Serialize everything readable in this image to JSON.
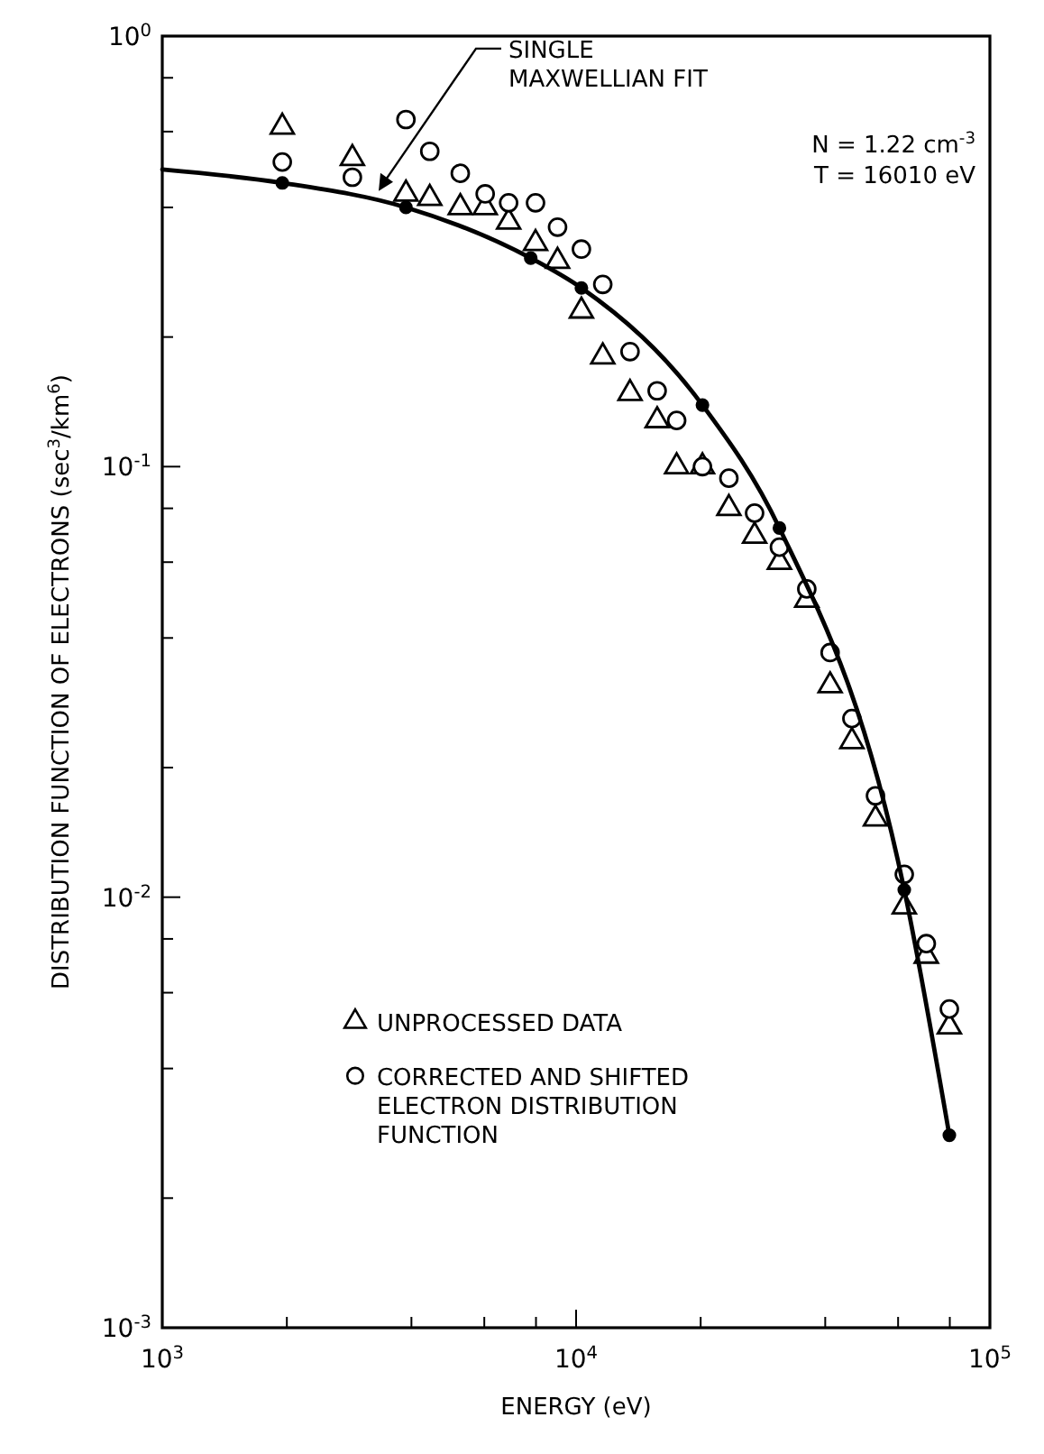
{
  "chart_data": {
    "type": "scatter",
    "xlabel": "ENERGY (eV)",
    "ylabel": "DISTRIBUTION FUNCTION OF ELECTRONS (sec$^{3}$/km$^{6}$)",
    "log": "xy",
    "xlim": [
      1000,
      100000
    ],
    "ylim": [
      0.001,
      1
    ],
    "xticks": [
      {
        "value": 1000,
        "label": "10$^{3}$"
      },
      {
        "value": 2000,
        "label": null
      },
      {
        "value": 4000,
        "label": null
      },
      {
        "value": 6000,
        "label": null
      },
      {
        "value": 8000,
        "label": null
      },
      {
        "value": 10000,
        "label": "10$^{4}$"
      },
      {
        "value": 20000,
        "label": null
      },
      {
        "value": 40000,
        "label": null
      },
      {
        "value": 60000,
        "label": null
      },
      {
        "value": 80000,
        "label": null
      },
      {
        "value": 100000,
        "label": "10$^{5}$"
      }
    ],
    "yticks": [
      {
        "value": 0.001,
        "label": "10$^{-3}$"
      },
      {
        "value": 0.002,
        "label": null
      },
      {
        "value": 0.004,
        "label": null
      },
      {
        "value": 0.006,
        "label": null
      },
      {
        "value": 0.008,
        "label": null
      },
      {
        "value": 0.01,
        "label": "10$^{-2}$"
      },
      {
        "value": 0.02,
        "label": null
      },
      {
        "value": 0.04,
        "label": null
      },
      {
        "value": 0.06,
        "label": null
      },
      {
        "value": 0.08,
        "label": null
      },
      {
        "value": 0.1,
        "label": "10$^{-1}$"
      },
      {
        "value": 0.2,
        "label": null
      },
      {
        "value": 0.4,
        "label": null
      },
      {
        "value": 0.6,
        "label": null
      },
      {
        "value": 0.8,
        "label": null
      },
      {
        "value": 1,
        "label": "10$^{0}$"
      }
    ],
    "grid": false,
    "legend": "bottom left",
    "series": [
      {
        "name": "UNPROCESSED DATA",
        "type": "scatter",
        "marker": "triangle",
        "color": "#000000",
        "x": [
          1950,
          2880,
          3880,
          4430,
          5250,
          6030,
          6870,
          7980,
          9020,
          10300,
          11600,
          13500,
          15700,
          17500,
          20200,
          23400,
          27000,
          31000,
          36100,
          41100,
          46400,
          52900,
          62100,
          70200,
          79800
        ],
        "values": [
          0.615,
          0.52,
          0.43,
          0.42,
          0.4,
          0.4,
          0.37,
          0.33,
          0.3,
          0.23,
          0.18,
          0.148,
          0.128,
          0.1,
          0.1,
          0.08,
          0.069,
          0.06,
          0.049,
          0.031,
          0.023,
          0.0152,
          0.0095,
          0.0073,
          0.005
        ]
      },
      {
        "name": "CORRECTED AND SHIFTED ELECTRON DISTRIBUTION FUNCTION",
        "type": "scatter",
        "marker": "circle",
        "color": "#000000",
        "x": [
          1950,
          2880,
          3880,
          4430,
          5250,
          6030,
          6870,
          7980,
          9020,
          10300,
          11600,
          13500,
          15700,
          17500,
          20200,
          23400,
          27000,
          31000,
          36100,
          41100,
          46400,
          52900,
          62100,
          70200,
          79800
        ],
        "values": [
          0.51,
          0.47,
          0.64,
          0.54,
          0.48,
          0.43,
          0.41,
          0.41,
          0.36,
          0.32,
          0.265,
          0.185,
          0.15,
          0.128,
          0.1,
          0.094,
          0.078,
          0.065,
          0.052,
          0.037,
          0.026,
          0.0172,
          0.0113,
          0.0078,
          0.0055
        ]
      },
      {
        "type": "line",
        "marker": "none",
        "line_style": "solid",
        "color": "#000000",
        "x": [
          1000,
          1950,
          3880,
          7770,
          10300,
          20200,
          31000,
          62100,
          79800
        ],
        "values": [
          0.49,
          0.456,
          0.4,
          0.305,
          0.26,
          0.139,
          0.072,
          0.0104,
          0.0028
        ]
      },
      {
        "type": "scatter",
        "marker": "circle",
        "color": "#000000",
        "x": [
          1950,
          3880,
          7770,
          10300,
          20200,
          31000,
          62100,
          79800
        ],
        "values": [
          0.456,
          0.4,
          0.305,
          0.26,
          0.139,
          0.072,
          0.0104,
          0.0028
        ]
      }
    ],
    "annotations": [
      {
        "text": "SINGLE MAXWELLIAN FIT",
        "x": 3300,
        "y": 0.42
      },
      "N = 1.22 cm$^{-3}$",
      "T = 16010 eV"
    ]
  }
}
